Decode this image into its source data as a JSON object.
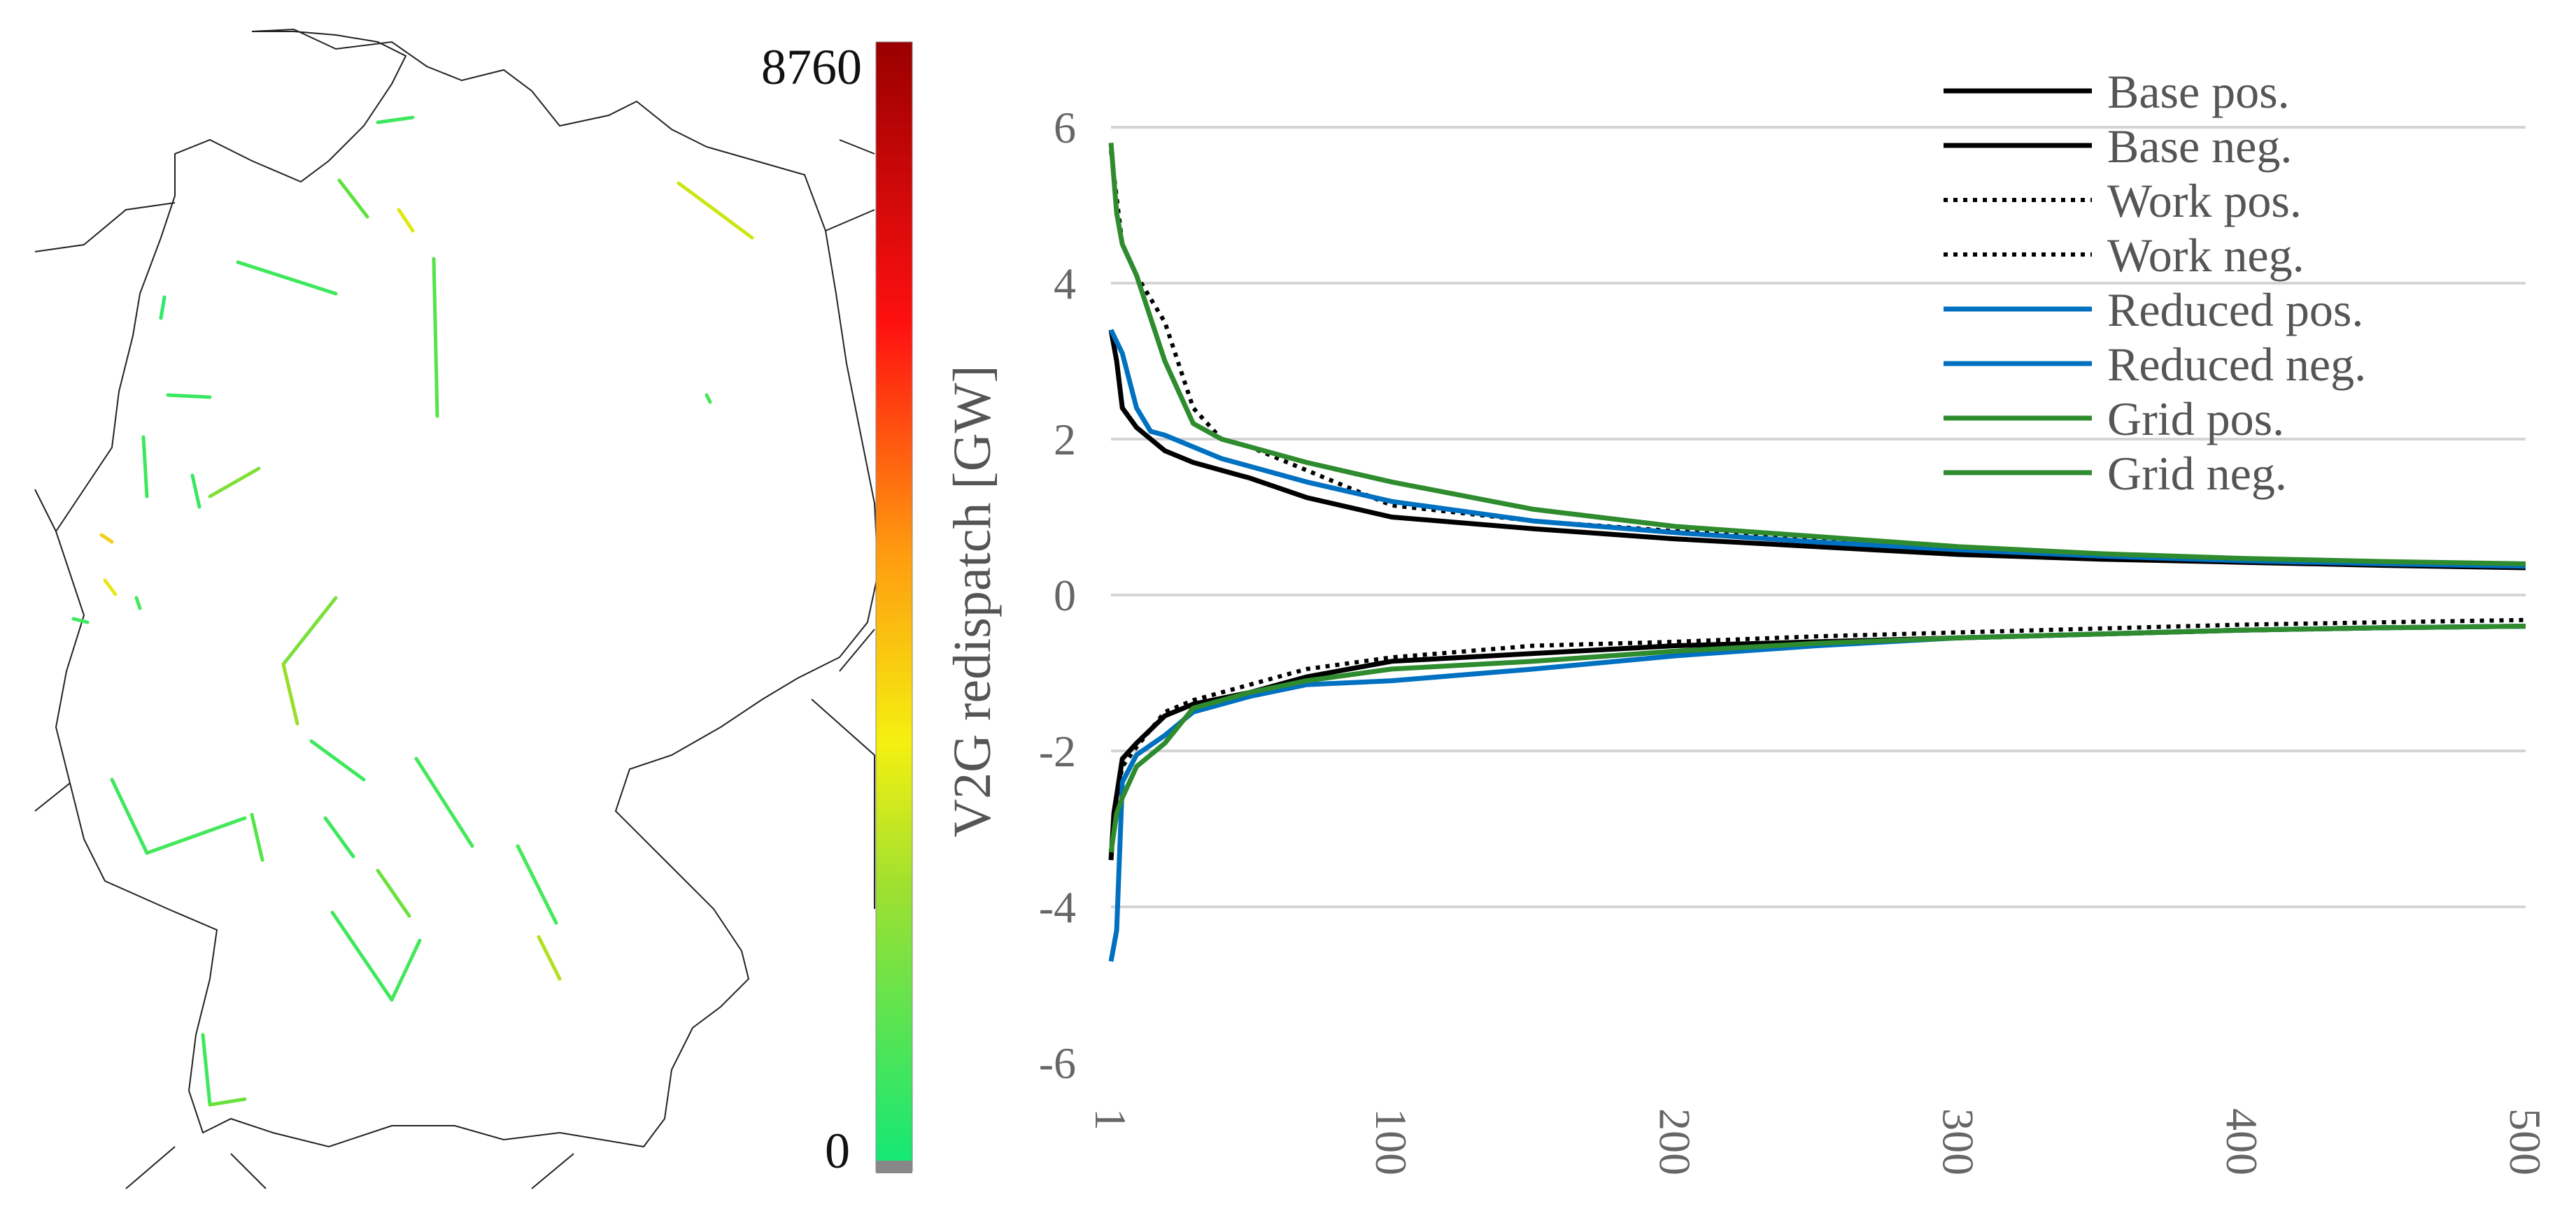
{
  "colorbar": {
    "max_label": "8760",
    "min_label": "0"
  },
  "chart_data": {
    "type": "line",
    "ylabel": "V2G redispatch [GW]",
    "xlabel": "",
    "xlim": [
      1,
      500
    ],
    "ylim": [
      -6,
      6
    ],
    "yticks": [
      6,
      4,
      2,
      0,
      -2,
      -4,
      -6
    ],
    "xticks": [
      1,
      100,
      200,
      300,
      400,
      500
    ],
    "grid": "horizontal",
    "legend_position": "top-right",
    "series": [
      {
        "name": "Base pos.",
        "color": "#000000",
        "dash": "solid",
        "points": [
          [
            1,
            3.4
          ],
          [
            3,
            3.0
          ],
          [
            5,
            2.4
          ],
          [
            10,
            2.15
          ],
          [
            20,
            1.85
          ],
          [
            30,
            1.7
          ],
          [
            40,
            1.6
          ],
          [
            50,
            1.5
          ],
          [
            70,
            1.25
          ],
          [
            100,
            1.0
          ],
          [
            150,
            0.85
          ],
          [
            200,
            0.72
          ],
          [
            250,
            0.62
          ],
          [
            300,
            0.52
          ],
          [
            350,
            0.46
          ],
          [
            400,
            0.42
          ],
          [
            450,
            0.38
          ],
          [
            500,
            0.35
          ]
        ]
      },
      {
        "name": "Base neg.",
        "color": "#000000",
        "dash": "solid",
        "points": [
          [
            1,
            -3.4
          ],
          [
            2,
            -2.8
          ],
          [
            5,
            -2.1
          ],
          [
            10,
            -1.9
          ],
          [
            20,
            -1.55
          ],
          [
            30,
            -1.4
          ],
          [
            50,
            -1.25
          ],
          [
            70,
            -1.05
          ],
          [
            100,
            -0.85
          ],
          [
            150,
            -0.75
          ],
          [
            200,
            -0.65
          ],
          [
            250,
            -0.6
          ],
          [
            300,
            -0.55
          ],
          [
            350,
            -0.5
          ],
          [
            400,
            -0.45
          ],
          [
            450,
            -0.42
          ],
          [
            500,
            -0.4
          ]
        ]
      },
      {
        "name": "Work pos.",
        "color": "#000000",
        "dash": "dotted",
        "points": [
          [
            1,
            5.7
          ],
          [
            5,
            4.5
          ],
          [
            10,
            4.1
          ],
          [
            20,
            3.5
          ],
          [
            30,
            2.4
          ],
          [
            40,
            2.0
          ],
          [
            50,
            1.9
          ],
          [
            70,
            1.6
          ],
          [
            100,
            1.15
          ],
          [
            150,
            0.95
          ],
          [
            200,
            0.82
          ],
          [
            250,
            0.7
          ],
          [
            300,
            0.6
          ],
          [
            350,
            0.52
          ],
          [
            400,
            0.47
          ],
          [
            450,
            0.43
          ],
          [
            500,
            0.38
          ]
        ]
      },
      {
        "name": "Work neg.",
        "color": "#000000",
        "dash": "dotted",
        "points": [
          [
            1,
            -3.3
          ],
          [
            3,
            -2.6
          ],
          [
            5,
            -2.2
          ],
          [
            10,
            -1.95
          ],
          [
            20,
            -1.5
          ],
          [
            30,
            -1.35
          ],
          [
            50,
            -1.15
          ],
          [
            70,
            -0.95
          ],
          [
            100,
            -0.8
          ],
          [
            150,
            -0.65
          ],
          [
            200,
            -0.6
          ],
          [
            250,
            -0.53
          ],
          [
            300,
            -0.48
          ],
          [
            350,
            -0.43
          ],
          [
            400,
            -0.38
          ],
          [
            450,
            -0.35
          ],
          [
            500,
            -0.32
          ]
        ]
      },
      {
        "name": "Reduced pos.",
        "color": "#0070c0",
        "dash": "solid",
        "points": [
          [
            1,
            3.4
          ],
          [
            5,
            3.1
          ],
          [
            10,
            2.4
          ],
          [
            15,
            2.1
          ],
          [
            20,
            2.05
          ],
          [
            30,
            1.9
          ],
          [
            40,
            1.75
          ],
          [
            50,
            1.65
          ],
          [
            70,
            1.45
          ],
          [
            100,
            1.2
          ],
          [
            150,
            0.95
          ],
          [
            200,
            0.8
          ],
          [
            250,
            0.68
          ],
          [
            300,
            0.58
          ],
          [
            350,
            0.5
          ],
          [
            400,
            0.44
          ],
          [
            450,
            0.4
          ],
          [
            500,
            0.37
          ]
        ]
      },
      {
        "name": "Reduced neg.",
        "color": "#0070c0",
        "dash": "solid",
        "points": [
          [
            1,
            -4.7
          ],
          [
            3,
            -4.3
          ],
          [
            5,
            -2.4
          ],
          [
            10,
            -2.05
          ],
          [
            20,
            -1.8
          ],
          [
            30,
            -1.5
          ],
          [
            50,
            -1.3
          ],
          [
            70,
            -1.15
          ],
          [
            100,
            -1.1
          ],
          [
            150,
            -0.95
          ],
          [
            200,
            -0.78
          ],
          [
            250,
            -0.65
          ],
          [
            300,
            -0.55
          ],
          [
            350,
            -0.5
          ],
          [
            400,
            -0.45
          ],
          [
            450,
            -0.42
          ],
          [
            500,
            -0.4
          ]
        ]
      },
      {
        "name": "Grid pos.",
        "color": "#2e8b2e",
        "dash": "solid",
        "points": [
          [
            1,
            5.8
          ],
          [
            3,
            4.9
          ],
          [
            5,
            4.5
          ],
          [
            10,
            4.1
          ],
          [
            20,
            3.0
          ],
          [
            30,
            2.2
          ],
          [
            40,
            2.0
          ],
          [
            50,
            1.9
          ],
          [
            70,
            1.7
          ],
          [
            100,
            1.45
          ],
          [
            150,
            1.1
          ],
          [
            200,
            0.88
          ],
          [
            250,
            0.75
          ],
          [
            300,
            0.62
          ],
          [
            350,
            0.53
          ],
          [
            400,
            0.47
          ],
          [
            450,
            0.43
          ],
          [
            500,
            0.4
          ]
        ]
      },
      {
        "name": "Grid neg.",
        "color": "#2e8b2e",
        "dash": "solid",
        "points": [
          [
            1,
            -3.3
          ],
          [
            3,
            -2.8
          ],
          [
            5,
            -2.6
          ],
          [
            10,
            -2.2
          ],
          [
            20,
            -1.9
          ],
          [
            30,
            -1.45
          ],
          [
            50,
            -1.25
          ],
          [
            70,
            -1.1
          ],
          [
            100,
            -0.95
          ],
          [
            150,
            -0.85
          ],
          [
            200,
            -0.72
          ],
          [
            250,
            -0.62
          ],
          [
            300,
            -0.55
          ],
          [
            350,
            -0.5
          ],
          [
            400,
            -0.45
          ],
          [
            450,
            -0.42
          ],
          [
            500,
            -0.4
          ]
        ]
      }
    ]
  }
}
